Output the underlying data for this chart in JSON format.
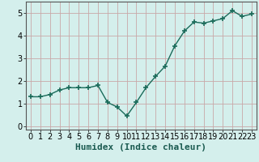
{
  "x": [
    0,
    1,
    2,
    3,
    4,
    5,
    6,
    7,
    8,
    9,
    10,
    11,
    12,
    13,
    14,
    15,
    16,
    17,
    18,
    19,
    20,
    21,
    22,
    23
  ],
  "y": [
    1.3,
    1.3,
    1.4,
    1.6,
    1.7,
    1.7,
    1.7,
    1.8,
    1.05,
    0.85,
    0.45,
    1.05,
    1.7,
    2.2,
    2.65,
    3.55,
    4.2,
    4.6,
    4.55,
    4.65,
    4.75,
    5.1,
    4.85,
    4.95
  ],
  "xlabel": "Humidex (Indice chaleur)",
  "ylim": [
    -0.15,
    5.5
  ],
  "xlim": [
    -0.5,
    23.5
  ],
  "yticks": [
    0,
    1,
    2,
    3,
    4,
    5
  ],
  "xticks": [
    0,
    1,
    2,
    3,
    4,
    5,
    6,
    7,
    8,
    9,
    10,
    11,
    12,
    13,
    14,
    15,
    16,
    17,
    18,
    19,
    20,
    21,
    22,
    23
  ],
  "line_color": "#1a6b5a",
  "marker": "+",
  "marker_size": 4,
  "line_width": 1.0,
  "bg_color": "#d4efec",
  "grid_color": "#c9a8a8",
  "xlabel_fontsize": 8,
  "tick_fontsize": 7,
  "spine_color": "#555555"
}
